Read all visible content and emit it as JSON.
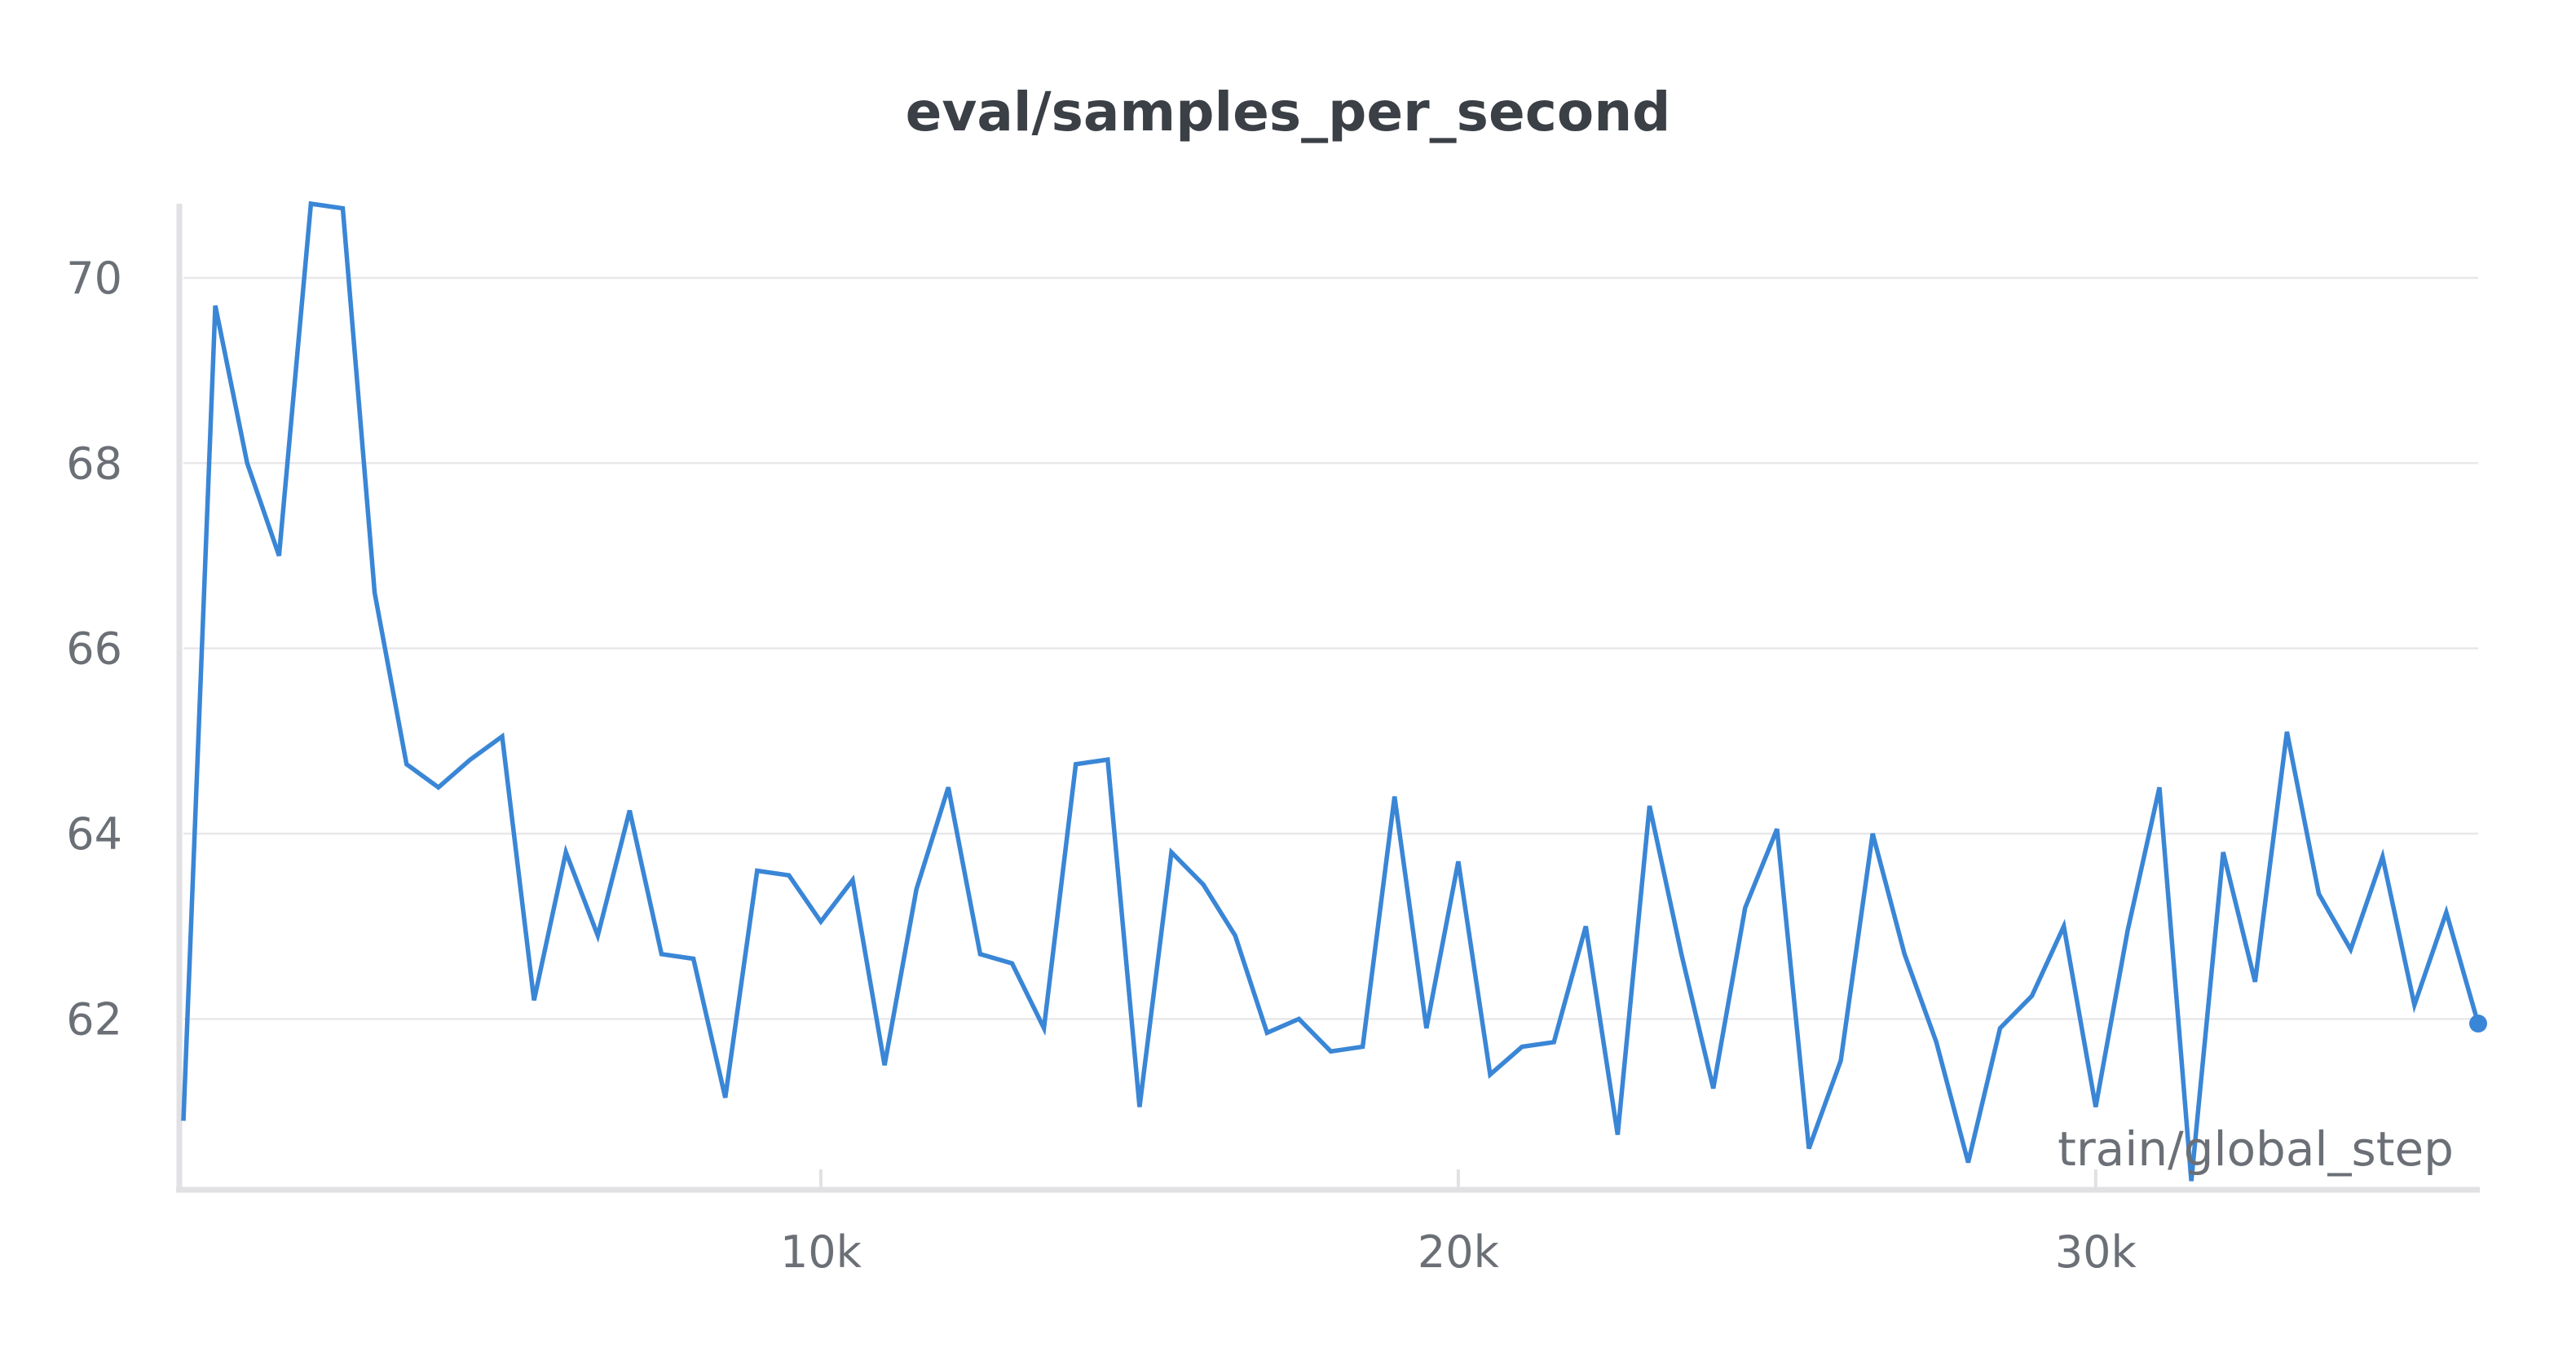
{
  "chart_data": {
    "type": "line",
    "title": "eval/samples_per_second",
    "xlabel": "train/global_step",
    "ylabel": "",
    "xlim": [
      0,
      36000
    ],
    "ylim": [
      60.2,
      70.8
    ],
    "x_ticks": [
      10000,
      20000,
      30000
    ],
    "x_tick_labels": [
      "10k",
      "20k",
      "30k"
    ],
    "y_ticks": [
      62,
      64,
      66,
      68,
      70
    ],
    "y_tick_labels": [
      "62",
      "64",
      "66",
      "68",
      "70"
    ],
    "grid": "horizontal",
    "legend": "none",
    "last_point_marker": true,
    "series": [
      {
        "color": "#3a86d6",
        "x": [
          0,
          500,
          1000,
          1500,
          2000,
          2500,
          3000,
          3500,
          4000,
          4500,
          5000,
          5500,
          6000,
          6500,
          7000,
          7500,
          8000,
          8500,
          9000,
          9500,
          10000,
          10500,
          11000,
          11500,
          12000,
          12500,
          13000,
          13500,
          14000,
          14500,
          15000,
          15500,
          16000,
          16500,
          17000,
          17500,
          18000,
          18500,
          19000,
          19500,
          20000,
          20500,
          21000,
          21500,
          22000,
          22500,
          23000,
          23500,
          24000,
          24500,
          25000,
          25500,
          26000,
          26500,
          27000,
          27500,
          28000,
          28500,
          29000,
          29500,
          30000,
          30500,
          31000,
          31500,
          32000,
          32500,
          33000,
          33500,
          34000,
          34500,
          35000,
          35500,
          36000
        ],
        "y": [
          60.9,
          69.7,
          68.0,
          67.0,
          70.8,
          70.75,
          66.6,
          64.75,
          64.5,
          64.8,
          65.05,
          62.2,
          63.8,
          62.9,
          64.25,
          62.7,
          62.65,
          61.15,
          63.6,
          63.55,
          63.05,
          63.5,
          61.5,
          63.4,
          64.5,
          62.7,
          62.6,
          61.9,
          64.75,
          64.8,
          61.05,
          63.8,
          63.45,
          62.9,
          61.85,
          62.0,
          61.65,
          61.7,
          64.4,
          61.9,
          63.7,
          61.4,
          61.7,
          61.75,
          63.0,
          60.75,
          64.3,
          62.7,
          61.25,
          63.2,
          64.05,
          60.6,
          61.55,
          64.0,
          62.7,
          61.75,
          60.45,
          61.9,
          62.25,
          63.0,
          61.05,
          62.95,
          64.5,
          60.25,
          63.8,
          62.4,
          65.1,
          63.35,
          62.75,
          63.75,
          62.15,
          63.15,
          61.95
        ]
      }
    ]
  }
}
